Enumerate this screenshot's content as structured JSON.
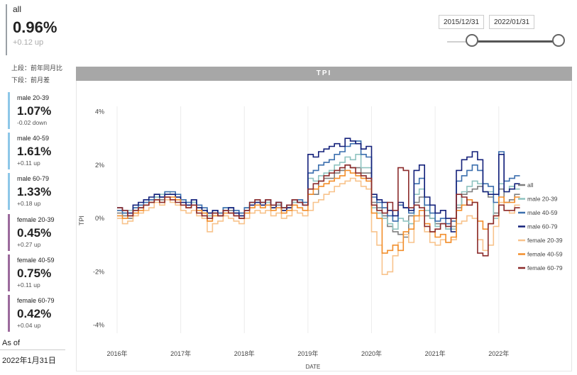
{
  "summary": {
    "label": "all",
    "value": "0.96%",
    "change": "+0.12 up"
  },
  "notes": {
    "line1": "上段：前年同月比",
    "line2": "下段：前月差"
  },
  "cards": [
    {
      "label": "male 20-39",
      "value": "1.07%",
      "change": "-0.02 down"
    },
    {
      "label": "male 40-59",
      "value": "1.61%",
      "change": "+0.11 up"
    },
    {
      "label": "male 60-79",
      "value": "1.33%",
      "change": "+0.18 up"
    },
    {
      "label": "female 20-39",
      "value": "0.45%",
      "change": "+0.27 up"
    },
    {
      "label": "female 40-59",
      "value": "0.75%",
      "change": "+0.11 up"
    },
    {
      "label": "female 60-79",
      "value": "0.42%",
      "change": "+0.04 up"
    }
  ],
  "as_of": {
    "label": "As of",
    "date": "2022年1月31日"
  },
  "date_range": {
    "start": "2015/12/31",
    "end": "2022/01/31"
  },
  "chart_title": "TPI",
  "chart_data": {
    "type": "line",
    "title": "TPI",
    "xlabel": "DATE",
    "ylabel": "TPI",
    "xlim": [
      2016.0,
      2022.17
    ],
    "ylim": [
      -4.3,
      4.2
    ],
    "x_ticks": [
      2016,
      2017,
      2018,
      2019,
      2020,
      2021,
      2022
    ],
    "x_tick_labels": [
      "2016年",
      "2017年",
      "2018年",
      "2019年",
      "2020年",
      "2021年",
      "2022年"
    ],
    "y_ticks": [
      4,
      2,
      0,
      -2,
      -4
    ],
    "y_tick_labels": [
      "4%",
      "2%",
      "0%",
      "-2%",
      "-4%"
    ],
    "grid": "vertical",
    "legend_position": "right",
    "step_months": 1,
    "start": "2016-01",
    "series": [
      {
        "name": "all",
        "color": "#7f7f7f",
        "values": [
          0.2,
          0.1,
          0.0,
          0.3,
          0.4,
          0.5,
          0.6,
          0.8,
          0.7,
          0.9,
          0.9,
          0.8,
          0.6,
          0.5,
          0.6,
          0.4,
          0.3,
          0.1,
          0.2,
          0.1,
          0.3,
          0.3,
          0.2,
          0.1,
          0.3,
          0.5,
          0.6,
          0.5,
          0.6,
          0.4,
          0.5,
          0.3,
          0.4,
          0.6,
          0.6,
          0.5,
          0.9,
          0.9,
          1.4,
          1.5,
          1.5,
          1.7,
          1.8,
          2.0,
          1.9,
          1.9,
          1.7,
          1.7,
          0.6,
          0.4,
          0.1,
          -0.3,
          -0.5,
          -0.6,
          -0.7,
          0.1,
          0.6,
          0.8,
          0.1,
          0.0,
          -0.2,
          -0.2,
          -0.4,
          -0.3,
          0.4,
          0.9,
          1.0,
          1.1,
          1.2,
          1.0,
          0.8,
          0.2,
          1.1,
          0.6,
          0.7,
          0.9
        ]
      },
      {
        "name": "male 20-39",
        "color": "#8fc3c0",
        "values": [
          0.3,
          0.2,
          0.3,
          0.4,
          0.5,
          0.6,
          0.7,
          0.8,
          0.9,
          1.0,
          0.9,
          0.8,
          0.7,
          0.6,
          0.6,
          0.4,
          0.2,
          0.1,
          0.3,
          0.2,
          0.4,
          0.4,
          0.3,
          0.2,
          0.4,
          0.6,
          0.7,
          0.6,
          0.6,
          0.5,
          0.6,
          0.4,
          0.5,
          0.6,
          0.7,
          0.6,
          1.5,
          1.4,
          1.6,
          1.7,
          1.8,
          2.0,
          2.1,
          2.3,
          2.2,
          2.4,
          1.9,
          1.9,
          0.4,
          0.2,
          0.0,
          -0.2,
          -0.4,
          0.0,
          -0.1,
          -0.2,
          0.9,
          1.1,
          0.3,
          0.0,
          -0.3,
          -0.2,
          -0.4,
          -0.4,
          0.5,
          1.0,
          1.2,
          1.4,
          1.3,
          1.0,
          1.0,
          0.0,
          1.3,
          1.0,
          1.2,
          1.1
        ]
      },
      {
        "name": "male 40-59",
        "color": "#3b6fae",
        "values": [
          0.3,
          0.2,
          0.1,
          0.4,
          0.5,
          0.6,
          0.7,
          0.9,
          0.8,
          1.0,
          1.0,
          0.9,
          0.7,
          0.6,
          0.7,
          0.5,
          0.4,
          0.2,
          0.3,
          0.2,
          0.4,
          0.4,
          0.3,
          0.2,
          0.4,
          0.6,
          0.7,
          0.6,
          0.7,
          0.5,
          0.6,
          0.4,
          0.5,
          0.7,
          0.7,
          0.6,
          1.7,
          1.8,
          2.0,
          2.1,
          2.2,
          2.4,
          2.5,
          2.7,
          2.8,
          2.9,
          2.4,
          2.3,
          0.8,
          0.6,
          0.4,
          0.1,
          -0.1,
          0.5,
          0.4,
          0.2,
          1.3,
          1.5,
          0.5,
          0.2,
          -0.1,
          0.0,
          -0.2,
          -0.1,
          1.4,
          1.6,
          1.8,
          2.0,
          1.8,
          1.3,
          1.2,
          0.6,
          2.5,
          1.4,
          1.5,
          1.6
        ]
      },
      {
        "name": "male 60-79",
        "color": "#13207a",
        "values": [
          0.4,
          0.3,
          0.2,
          0.5,
          0.6,
          0.7,
          0.8,
          0.9,
          0.8,
          0.9,
          0.9,
          0.8,
          0.6,
          0.5,
          0.7,
          0.4,
          0.3,
          0.2,
          0.3,
          0.1,
          0.3,
          0.4,
          0.2,
          0.1,
          0.3,
          0.5,
          0.6,
          0.5,
          0.7,
          0.4,
          0.6,
          0.3,
          0.4,
          0.7,
          0.6,
          0.5,
          2.4,
          2.3,
          2.5,
          2.6,
          2.7,
          2.8,
          2.7,
          3.0,
          2.9,
          2.8,
          2.6,
          2.7,
          0.9,
          0.7,
          0.6,
          0.3,
          0.1,
          0.6,
          0.4,
          0.3,
          1.8,
          2.0,
          0.8,
          0.5,
          0.2,
          0.3,
          0.0,
          -0.5,
          1.8,
          2.2,
          2.3,
          2.5,
          2.2,
          1.0,
          0.9,
          0.9,
          2.4,
          1.0,
          1.1,
          1.3
        ]
      },
      {
        "name": "female 20-39",
        "color": "#f8c38c",
        "values": [
          0.0,
          -0.2,
          -0.1,
          0.1,
          0.2,
          0.3,
          0.4,
          0.6,
          0.5,
          0.7,
          0.6,
          0.5,
          0.3,
          0.2,
          0.3,
          0.1,
          0.0,
          -0.5,
          -0.2,
          -0.1,
          0.1,
          0.0,
          -0.1,
          -0.2,
          0.0,
          0.2,
          0.3,
          0.2,
          0.3,
          0.1,
          0.2,
          0.0,
          0.1,
          0.3,
          0.2,
          0.1,
          0.3,
          0.6,
          0.7,
          0.9,
          1.0,
          1.2,
          1.3,
          1.4,
          1.5,
          1.4,
          1.2,
          1.1,
          -0.5,
          -1.0,
          -2.1,
          -2.0,
          -1.4,
          -0.9,
          -0.6,
          -0.9,
          -0.1,
          0.1,
          -0.5,
          -0.9,
          -1.0,
          -0.8,
          -0.9,
          -0.8,
          -0.2,
          -0.1,
          0.1,
          0.0,
          -0.8,
          -1.2,
          -1.0,
          -0.3,
          0.6,
          0.3,
          0.2,
          0.5
        ]
      },
      {
        "name": "female 40-59",
        "color": "#f28e2b",
        "values": [
          0.1,
          0.0,
          0.1,
          0.2,
          0.3,
          0.5,
          0.6,
          0.7,
          0.6,
          0.8,
          0.8,
          0.7,
          0.5,
          0.4,
          0.5,
          0.3,
          0.2,
          -0.1,
          0.1,
          0.1,
          0.2,
          0.2,
          0.1,
          0.0,
          0.2,
          0.4,
          0.5,
          0.4,
          0.5,
          0.3,
          0.4,
          0.2,
          0.3,
          0.5,
          0.4,
          0.3,
          0.9,
          1.1,
          1.2,
          1.3,
          1.4,
          1.5,
          1.6,
          1.8,
          1.7,
          1.6,
          1.5,
          1.4,
          0.2,
          0.0,
          -1.3,
          -1.2,
          -1.0,
          -1.2,
          -0.5,
          -0.4,
          0.1,
          0.3,
          -0.2,
          -0.5,
          -0.7,
          -0.6,
          -0.9,
          -0.7,
          0.3,
          0.5,
          0.7,
          0.6,
          -0.1,
          -0.4,
          -0.2,
          0.1,
          0.8,
          0.6,
          0.6,
          0.8
        ]
      },
      {
        "name": "female 60-79",
        "color": "#8b2b2b",
        "values": [
          0.4,
          0.3,
          0.1,
          0.3,
          0.4,
          0.5,
          0.6,
          0.7,
          0.6,
          0.8,
          0.7,
          0.6,
          0.5,
          0.4,
          0.5,
          0.2,
          0.1,
          0.0,
          0.2,
          0.1,
          0.3,
          0.2,
          0.1,
          0.0,
          0.3,
          0.6,
          0.7,
          0.6,
          0.7,
          0.5,
          0.6,
          0.4,
          0.5,
          0.7,
          0.6,
          0.5,
          1.1,
          1.3,
          1.4,
          1.6,
          1.7,
          1.8,
          1.9,
          2.0,
          1.9,
          1.7,
          1.6,
          1.5,
          0.5,
          0.3,
          0.2,
          0.6,
          0.3,
          1.9,
          1.8,
          0.4,
          0.5,
          0.4,
          -0.3,
          -0.5,
          -0.4,
          -0.2,
          -0.3,
          0.0,
          0.9,
          0.8,
          0.5,
          0.6,
          -1.3,
          -1.4,
          -0.2,
          0.1,
          0.5,
          0.3,
          0.3,
          0.4
        ]
      }
    ]
  }
}
